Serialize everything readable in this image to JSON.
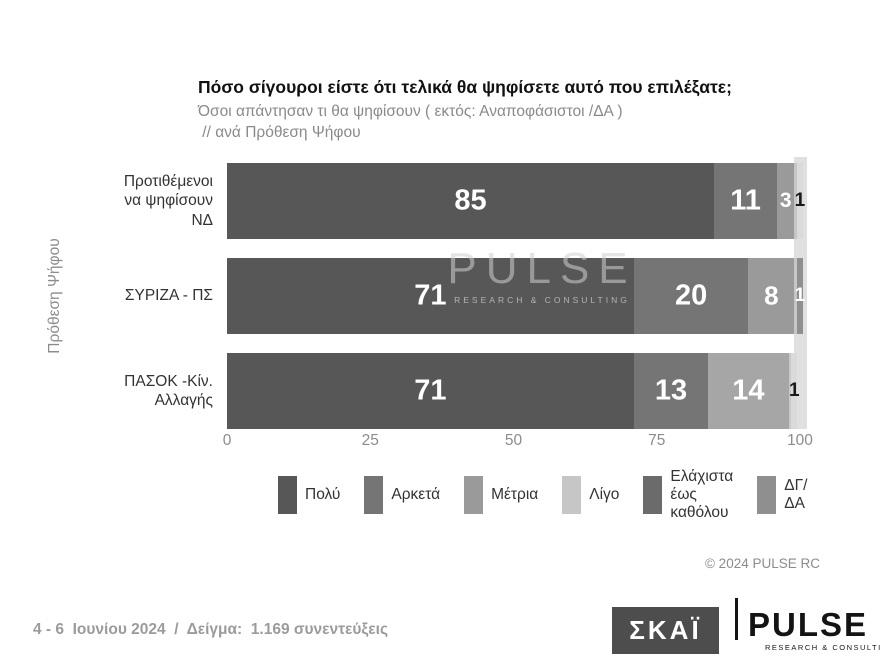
{
  "page": {
    "title": "Πόσο σίγουροι είστε ότι τελικά θα ψηφίσετε αυτό που επιλέξατε;",
    "subtitle1": "Όσοι απάντησαν τι θα ψηφίσουν ( εκτός: Αναποφάσιστοι /ΔΑ )",
    "subtitle2": " // ανά Πρόθεση Ψήφου",
    "copyright": "© 2024 PULSE RC",
    "footnote": "4 - 6  Ιουνίου 2024  /  Δείγμα:  1.169 συνεντεύξεις",
    "watermark": {
      "title": "PULSE",
      "subtitle": "RESEARCH & CONSULTING"
    },
    "logos": {
      "skai": "ΣΚΑΪ",
      "pulse": "PULSE",
      "pulse_sub": "RESEARCH & CONSULTING"
    }
  },
  "chart_data": {
    "type": "bar",
    "orientation": "horizontal",
    "stacked": true,
    "title": "Πόσο σίγουροι είστε ότι τελικά θα ψηφίσετε αυτό που επιλέξατε;",
    "ylabel": "Πρόθεση Ψήφου",
    "xlim": [
      0,
      100
    ],
    "xticks": [
      0,
      25,
      50,
      75,
      100
    ],
    "categories": [
      "Προτιθέμενοι\nνα ψηφίσουν\nΝΔ",
      "ΣΥΡΙΖΑ - ΠΣ",
      "ΠΑΣΟΚ -Κίν.\nΑλλαγής"
    ],
    "legend": [
      {
        "label": "Πολύ",
        "color": "#575757"
      },
      {
        "label": "Αρκετά",
        "color": "#757575"
      },
      {
        "label": "Μέτρια",
        "color": "#9a9a9a"
      },
      {
        "label": "Λίγο",
        "color": "#c6c6c6"
      },
      {
        "label": "Ελάχιστα\nέως\nκαθόλου",
        "color": "#6b6b6b"
      },
      {
        "label": "ΔΓ/\nΔΑ",
        "color": "#8f8f8f"
      }
    ],
    "rows": [
      {
        "category": "Προτιθέμενοι\nνα ψηφίσουν\nΝΔ",
        "segments": [
          {
            "value": 85,
            "label": "85",
            "color": "#575757",
            "label_color": "#ffffff"
          },
          {
            "value": 11,
            "label": "11",
            "color": "#757575",
            "label_color": "#ffffff"
          },
          {
            "value": 3,
            "label": "3",
            "color": "#9a9a9a",
            "label_color": "#ffffff"
          },
          {
            "value": 0.5,
            "label": "",
            "color": "#c6c6c6"
          },
          {
            "value": 1,
            "label": "1",
            "color": "#dadada",
            "label_color": "#1a1a1a"
          }
        ]
      },
      {
        "category": "ΣΥΡΙΖΑ - ΠΣ",
        "segments": [
          {
            "value": 71,
            "label": "71",
            "color": "#575757",
            "label_color": "#ffffff"
          },
          {
            "value": 20,
            "label": "20",
            "color": "#757575",
            "label_color": "#ffffff"
          },
          {
            "value": 8,
            "label": "8",
            "color": "#9a9a9a",
            "label_color": "#ffffff"
          },
          {
            "value": 0.5,
            "label": "",
            "color": "#c6c6c6"
          },
          {
            "value": 1,
            "label": "1",
            "color": "#8f8f8f",
            "label_color": "#ffffff"
          }
        ]
      },
      {
        "category": "ΠΑΣΟΚ -Κίν.\nΑλλαγής",
        "segments": [
          {
            "value": 71,
            "label": "71",
            "color": "#575757",
            "label_color": "#ffffff"
          },
          {
            "value": 13,
            "label": "13",
            "color": "#757575",
            "label_color": "#ffffff"
          },
          {
            "value": 14,
            "label": "14",
            "color": "#a6a6a6",
            "label_color": "#ffffff"
          },
          {
            "value": 0.5,
            "label": "",
            "color": "#c9c9c9"
          },
          {
            "value": 1,
            "label": "1",
            "color": "#dadada",
            "label_color": "#1a1a1a"
          }
        ]
      }
    ]
  }
}
